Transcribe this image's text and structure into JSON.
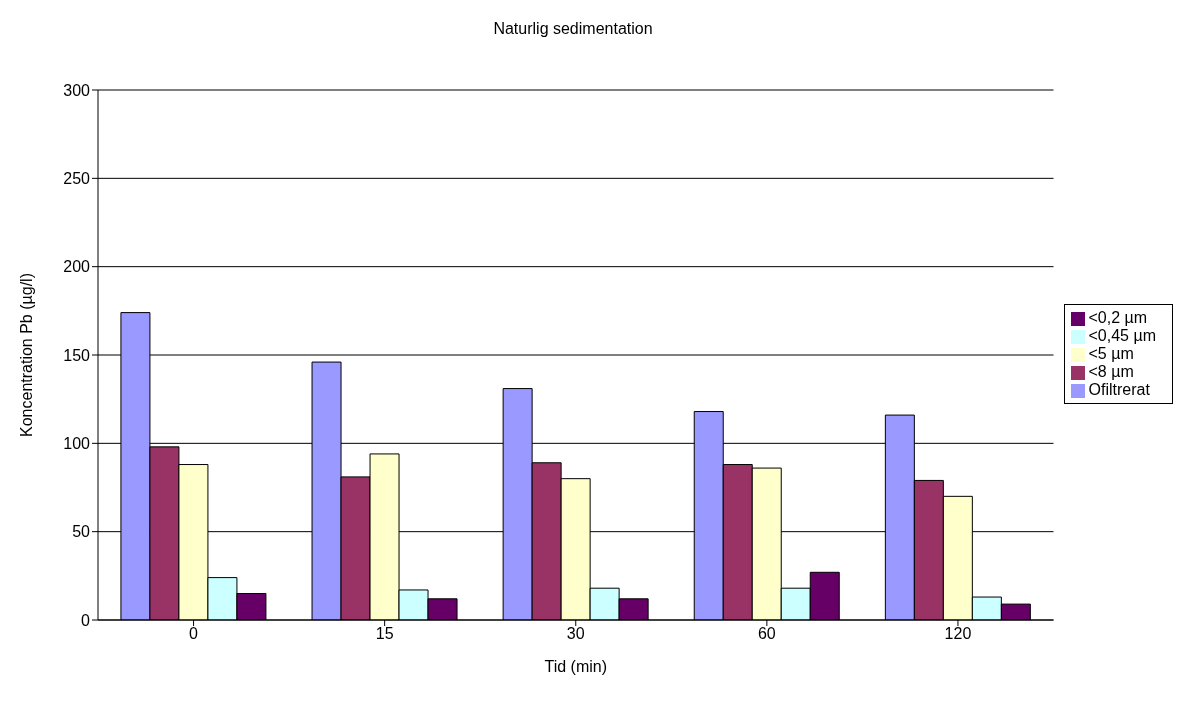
{
  "chart_data": {
    "type": "bar",
    "title": "Naturlig sedimentation",
    "xlabel": "Tid (min)",
    "ylabel": "Koncentration Pb (µg/l)",
    "categories": [
      "0",
      "15",
      "30",
      "60",
      "120"
    ],
    "series": [
      {
        "name": "Ofiltrerat",
        "color": "#9999ff",
        "values": [
          174,
          146,
          131,
          118,
          116
        ]
      },
      {
        "name": "<8 µm",
        "color": "#993366",
        "values": [
          98,
          81,
          89,
          88,
          79
        ]
      },
      {
        "name": "<5 µm",
        "color": "#ffffcc",
        "values": [
          88,
          94,
          80,
          86,
          70
        ]
      },
      {
        "name": "<0,45 µm",
        "color": "#ccffff",
        "values": [
          24,
          17,
          18,
          18,
          13
        ]
      },
      {
        "name": "<0,2 µm",
        "color": "#660066",
        "values": [
          15,
          12,
          12,
          27,
          9
        ]
      }
    ],
    "ylim": [
      0,
      300
    ],
    "yticks": [
      0,
      50,
      100,
      150,
      200,
      250,
      300
    ],
    "grid": "y",
    "legend": "right"
  }
}
